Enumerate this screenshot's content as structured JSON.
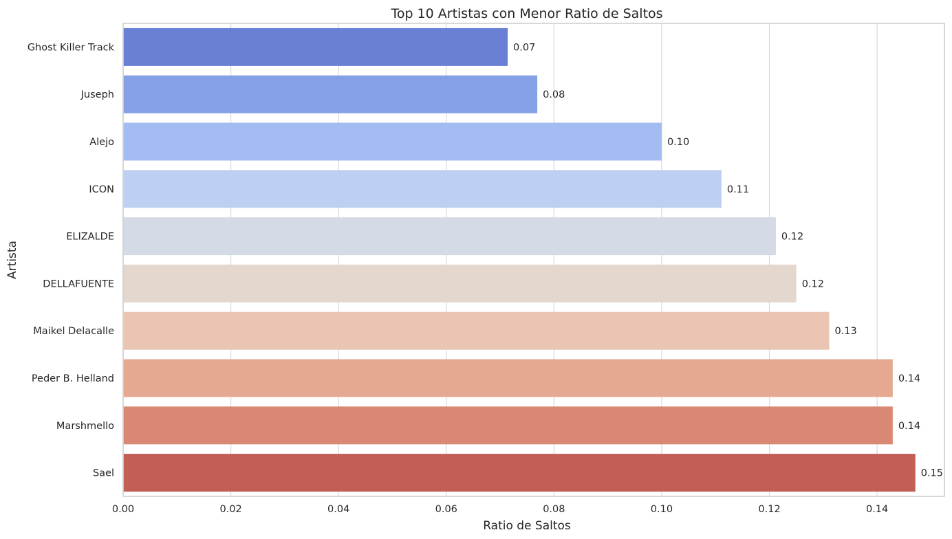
{
  "chart_data": {
    "type": "bar",
    "orientation": "horizontal",
    "title": "Top 10 Artistas con Menor Ratio de Saltos",
    "xlabel": "Ratio de Saltos",
    "ylabel": "Artista",
    "xlim": [
      0,
      0.1525
    ],
    "xticks": [
      0.0,
      0.02,
      0.04,
      0.06,
      0.08,
      0.1,
      0.12,
      0.14
    ],
    "xtick_labels": [
      "0.00",
      "0.02",
      "0.04",
      "0.06",
      "0.08",
      "0.10",
      "0.12",
      "0.14"
    ],
    "grid": "x",
    "categories": [
      "Ghost Killer Track",
      "Juseph",
      "Alejo",
      "ICON",
      "ELIZALDE",
      "DELLAFUENTE",
      "Maikel Delacalle",
      "Peder B. Helland",
      "Marshmello",
      "Sael"
    ],
    "values": [
      0.0714,
      0.0769,
      0.1,
      0.1111,
      0.1212,
      0.125,
      0.1311,
      0.1429,
      0.1429,
      0.1471
    ],
    "data_labels": [
      "0.07",
      "0.08",
      "0.10",
      "0.11",
      "0.12",
      "0.12",
      "0.13",
      "0.14",
      "0.14",
      "0.15"
    ],
    "colors": [
      "#6a80d4",
      "#85a0e6",
      "#a3bcf2",
      "#bdd0f2",
      "#d4dae6",
      "#e3d7ce",
      "#ebc5b3",
      "#e5a890",
      "#d98873",
      "#c25e55"
    ]
  }
}
